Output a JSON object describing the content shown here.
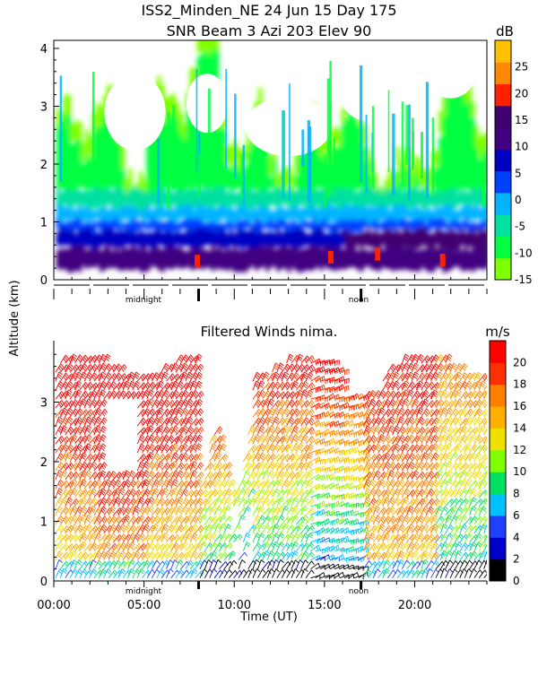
{
  "chart_data": [
    {
      "type": "heatmap",
      "title": "ISS2_Minden_NE  24 Jun 15 Day 175",
      "subtitle": "SNR Beam 3 Azi 203 Elev 90",
      "ylabel": "Altitude (km)",
      "ylim": [
        0,
        4.2
      ],
      "yticks": [
        "0",
        "1",
        "2",
        "3",
        "4"
      ],
      "day_marks": [
        "midnight",
        "noon"
      ],
      "colorbar": {
        "unit": "dB",
        "range": [
          -15,
          30
        ],
        "ticks": [
          "-15",
          "-10",
          "-5",
          "0",
          "5",
          "10",
          "15",
          "20",
          "25"
        ],
        "levels": [
          "#80ff00",
          "#00ff40",
          "#00e0a0",
          "#00b4ff",
          "#0040ff",
          "#0000c0",
          "#400080",
          "#400070",
          "#ff2000",
          "#ff8800",
          "#ffc000"
        ]
      }
    },
    {
      "type": "barbs",
      "title": "Filtered Winds nima.",
      "xlabel": "Time (UT)",
      "xlim": [
        0,
        24
      ],
      "xticks": [
        "00:00",
        "05:00",
        "10:00",
        "15:00",
        "20:00"
      ],
      "ylim": [
        0,
        4
      ],
      "yticks": [
        "0",
        "1",
        "2",
        "3"
      ],
      "day_marks": [
        "midnight",
        "noon"
      ],
      "colorbar": {
        "unit": "m/s",
        "range": [
          0,
          22
        ],
        "ticks": [
          "0",
          "2",
          "4",
          "6",
          "8",
          "10",
          "12",
          "14",
          "16",
          "18",
          "20"
        ],
        "levels": [
          "#000000",
          "#0000c8",
          "#2040ff",
          "#00c0ff",
          "#00e060",
          "#80ff00",
          "#f0e000",
          "#ffb000",
          "#ff8000",
          "#ff3000",
          "#ff0000"
        ]
      }
    }
  ]
}
